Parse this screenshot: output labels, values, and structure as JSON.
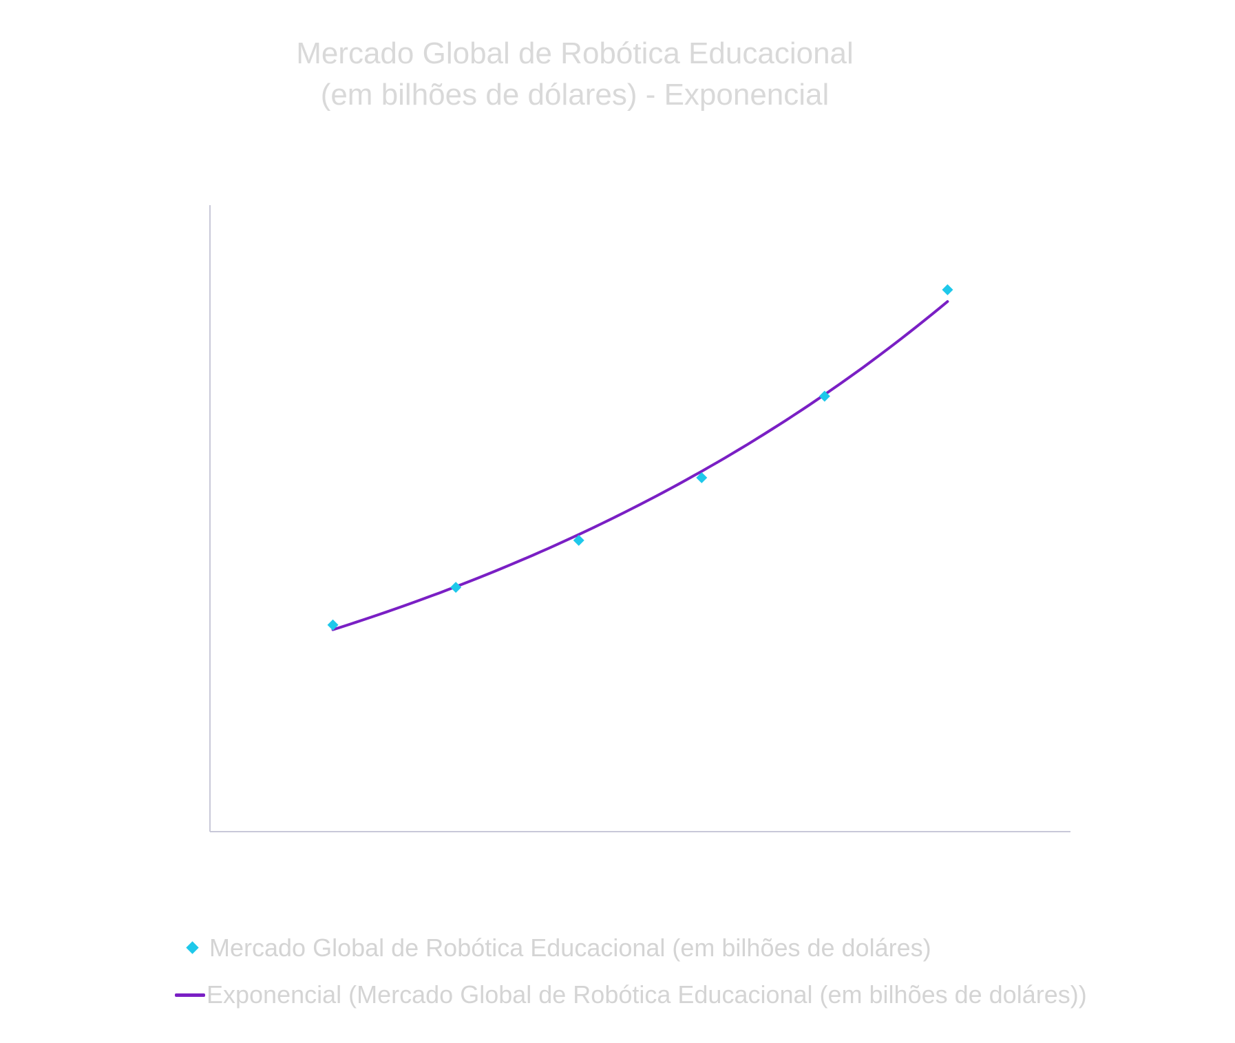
{
  "chart_data": {
    "type": "scatter",
    "title_line1": "Mercado Global de Robótica Educacional",
    "title_line2": "(em bilhões de dólares) - Exponencial",
    "xlabel": "",
    "ylabel": "",
    "grid": false,
    "axes_tick_labels_visible": false,
    "legend_position": "bottom",
    "x": [
      1,
      2,
      3,
      4,
      5,
      6
    ],
    "xlim": [
      0,
      7
    ],
    "ylim": [
      0,
      1
    ],
    "series": [
      {
        "name": "Mercado Global de Robótica Educacional (em bilhões de doláres)",
        "kind": "scatter",
        "marker": "diamond",
        "color": "#1ec8ea",
        "values": [
          0.33,
          0.39,
          0.465,
          0.565,
          0.695,
          0.865
        ]
      },
      {
        "name": "Exponencial (Mercado Global de Robótica Educacional (em bilhões de doláres))",
        "kind": "trendline-exponential",
        "color": "#7a1fc4",
        "fit": {
          "a": 0.2658,
          "b": 0.193
        }
      }
    ]
  }
}
